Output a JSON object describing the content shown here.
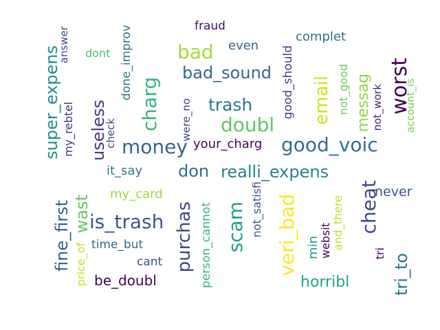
{
  "words": [
    {
      "text": "fraud",
      "color": "#3b0f6f"
    },
    {
      "text": "complet",
      "color": "#2c6f8e"
    },
    {
      "text": "even",
      "color": "#31668e"
    },
    {
      "text": "bad",
      "color": "#a5db36"
    },
    {
      "text": "dont",
      "color": "#44bf70"
    },
    {
      "text": "answer",
      "color": "#3e4a89"
    },
    {
      "text": "done_improv",
      "color": "#2a778e"
    },
    {
      "text": "super_expens",
      "color": "#218f8d"
    },
    {
      "text": "my_rebtel",
      "color": "#46327e"
    },
    {
      "text": "worst",
      "color": "#440154"
    },
    {
      "text": "bad_sound",
      "color": "#31688e"
    },
    {
      "text": "good_should",
      "color": "#433e85"
    },
    {
      "text": "not_good",
      "color": "#6ccd5a"
    },
    {
      "text": "account_is",
      "color": "#7ad151"
    },
    {
      "text": "not_work",
      "color": "#482475"
    },
    {
      "text": "charg",
      "color": "#35b779"
    },
    {
      "text": "trash",
      "color": "#2a788e"
    },
    {
      "text": "email",
      "color": "#d2e21b"
    },
    {
      "text": "messag",
      "color": "#90d743"
    },
    {
      "text": "useless",
      "color": "#443983"
    },
    {
      "text": "check",
      "color": "#3e4989"
    },
    {
      "text": "were_no",
      "color": "#414487"
    },
    {
      "text": "doubl",
      "color": "#5ec962"
    },
    {
      "text": "money",
      "color": "#31688e"
    },
    {
      "text": "your_charg",
      "color": "#440154"
    },
    {
      "text": "good_voic",
      "color": "#2d708e"
    },
    {
      "text": "it_say",
      "color": "#2a788e"
    },
    {
      "text": "don",
      "color": "#2c728e"
    },
    {
      "text": "realli_expens",
      "color": "#26828e"
    },
    {
      "text": "my_card",
      "color": "#a0da39"
    },
    {
      "text": "fine_first",
      "color": "#355f8d"
    },
    {
      "text": "wast",
      "color": "#5ec962"
    },
    {
      "text": "is_trash",
      "color": "#38598c"
    },
    {
      "text": "purchas",
      "color": "#414487"
    },
    {
      "text": "person_cannot",
      "color": "#35b779"
    },
    {
      "text": "scam",
      "color": "#1f9e89"
    },
    {
      "text": "not_satisfi",
      "color": "#3b528b"
    },
    {
      "text": "veri_bad",
      "color": "#fde725"
    },
    {
      "text": "min",
      "color": "#21908d"
    },
    {
      "text": "websit",
      "color": "#440154"
    },
    {
      "text": "and_there",
      "color": "#bddf26"
    },
    {
      "text": "cheat",
      "color": "#3e4989"
    },
    {
      "text": "never",
      "color": "#3b528b"
    },
    {
      "text": "tri",
      "color": "#440154"
    },
    {
      "text": "tri_to",
      "color": "#2c728e"
    },
    {
      "text": "price_of",
      "color": "#c8e020"
    },
    {
      "text": "time_but",
      "color": "#31688e"
    },
    {
      "text": "cant",
      "color": "#3b528b"
    },
    {
      "text": "be_doubl",
      "color": "#440154"
    },
    {
      "text": "horribl",
      "color": "#20a486"
    }
  ]
}
